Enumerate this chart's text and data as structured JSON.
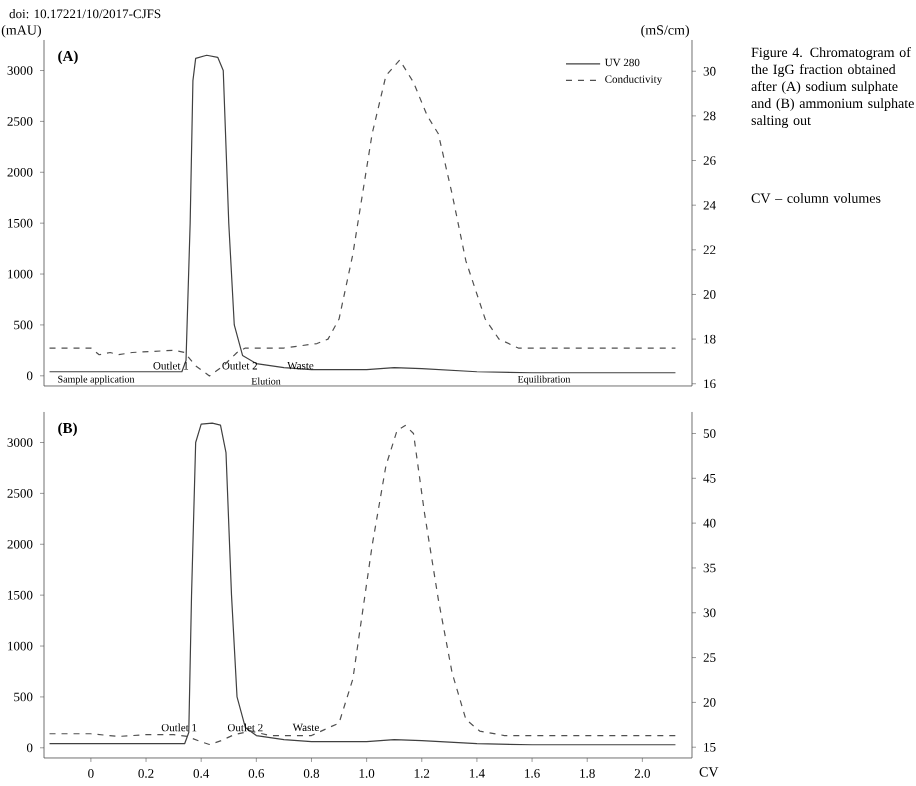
{
  "chart_data": [
    {
      "type": "line",
      "title": "(A)",
      "ylabel": "(mAU)",
      "y2label": "(mS/cm)",
      "xlim": [
        -0.17,
        2.18
      ],
      "ylim": [
        -100,
        3300
      ],
      "yticks": [
        0,
        500,
        1000,
        1500,
        2000,
        2500,
        3000
      ],
      "y2lim": [
        15.9,
        31.4
      ],
      "y2ticks": [
        16,
        18,
        20,
        22,
        24,
        26,
        28,
        30
      ],
      "tick_labels": "y",
      "legend": "top right",
      "series": [
        {
          "name": "UV 280",
          "color": "#404040",
          "line_style": "solid",
          "x": [
            -0.15,
            0.33,
            0.345,
            0.36,
            0.37,
            0.38,
            0.42,
            0.46,
            0.48,
            0.5,
            0.52,
            0.55,
            0.6,
            0.7,
            0.8,
            1.0,
            1.1,
            1.2,
            1.4,
            1.6,
            2.12
          ],
          "values": [
            40,
            40,
            150,
            1500,
            2900,
            3120,
            3150,
            3130,
            3000,
            1500,
            500,
            200,
            120,
            80,
            60,
            60,
            80,
            70,
            40,
            30,
            30
          ]
        },
        {
          "name": "Conductivity",
          "color": "#505050",
          "line_style": "dashed",
          "axis": "y2",
          "x": [
            -0.15,
            0.0,
            0.03,
            0.07,
            0.1,
            0.15,
            0.3,
            0.34,
            0.38,
            0.43,
            0.48,
            0.53,
            0.56,
            0.7,
            0.82,
            0.86,
            0.9,
            0.95,
            1.02,
            1.07,
            1.12,
            1.17,
            1.22,
            1.26,
            1.31,
            1.36,
            1.43,
            1.48,
            1.55,
            2.12
          ],
          "values": [
            17.6,
            17.6,
            17.3,
            17.4,
            17.3,
            17.4,
            17.5,
            17.4,
            16.8,
            16.35,
            16.8,
            17.4,
            17.6,
            17.6,
            17.8,
            18.0,
            18.9,
            21.8,
            27.2,
            29.8,
            30.5,
            29.5,
            28.0,
            27.2,
            24.5,
            21.5,
            18.9,
            18.0,
            17.6,
            17.6
          ]
        }
      ],
      "annotations": [
        "doi: 10.17221/10/2017-CJFS",
        "Figure 4. Chromatogram of the IgG fraction obtained after (A) sodium sulphate and (B) ammonium sulphate salting out",
        "CV – column volumes",
        {
          "text": "Outlet 1",
          "x": 0.29,
          "y": 100
        },
        {
          "text": "Outlet 2",
          "x": 0.54,
          "y": 100
        },
        {
          "text": "Waste",
          "x": 0.76,
          "y": 100
        },
        "Sample application",
        "Elution",
        "Equilibration"
      ]
    },
    {
      "type": "line",
      "title": "(B)",
      "xlabel": "CV",
      "xlim": [
        -0.17,
        2.18
      ],
      "xticks": [
        0,
        0.2,
        0.4,
        0.6,
        0.8,
        {
          "value": 1,
          "label": "1.0"
        },
        1.2,
        1.4,
        1.6,
        1.8,
        {
          "value": 2,
          "label": "2.0"
        }
      ],
      "ylim": [
        -100,
        3300
      ],
      "yticks": [
        0,
        500,
        1000,
        1500,
        2000,
        2500,
        3000
      ],
      "y2lim": [
        13.8,
        52.4
      ],
      "y2ticks": [
        15,
        20,
        25,
        30,
        35,
        40,
        45,
        50
      ],
      "series": [
        {
          "color": "#404040",
          "line_style": "solid",
          "x": [
            -0.15,
            0.34,
            0.355,
            0.365,
            0.38,
            0.4,
            0.44,
            0.47,
            0.49,
            0.51,
            0.53,
            0.56,
            0.6,
            0.7,
            0.8,
            1.0,
            1.1,
            1.2,
            1.4,
            1.6,
            2.12
          ],
          "values": [
            40,
            40,
            150,
            1500,
            3000,
            3180,
            3190,
            3170,
            2900,
            1500,
            500,
            200,
            120,
            80,
            60,
            60,
            80,
            70,
            40,
            30,
            30
          ]
        },
        {
          "color": "#505050",
          "line_style": "dashed",
          "axis": "y2",
          "x": [
            -0.15,
            0.0,
            0.1,
            0.2,
            0.3,
            0.35,
            0.4,
            0.43,
            0.47,
            0.52,
            0.58,
            0.65,
            0.8,
            0.9,
            0.95,
            1.02,
            1.07,
            1.11,
            1.14,
            1.17,
            1.21,
            1.26,
            1.31,
            1.36,
            1.41,
            1.5,
            2.12
          ],
          "values": [
            16.5,
            16.5,
            16.2,
            16.4,
            16.4,
            16.2,
            15.6,
            15.3,
            15.7,
            16.4,
            16.8,
            16.3,
            16.3,
            17.7,
            22.6,
            37.5,
            46.4,
            50.3,
            50.9,
            50.0,
            41.1,
            31.5,
            23.3,
            18.1,
            16.8,
            16.3,
            16.3
          ]
        }
      ],
      "annotations": [
        {
          "text": "Outlet 1",
          "x": 0.32,
          "y": 200
        },
        {
          "text": "Outlet 2",
          "x": 0.56,
          "y": 200
        },
        {
          "text": "Waste",
          "x": 0.78,
          "y": 200
        }
      ]
    }
  ]
}
